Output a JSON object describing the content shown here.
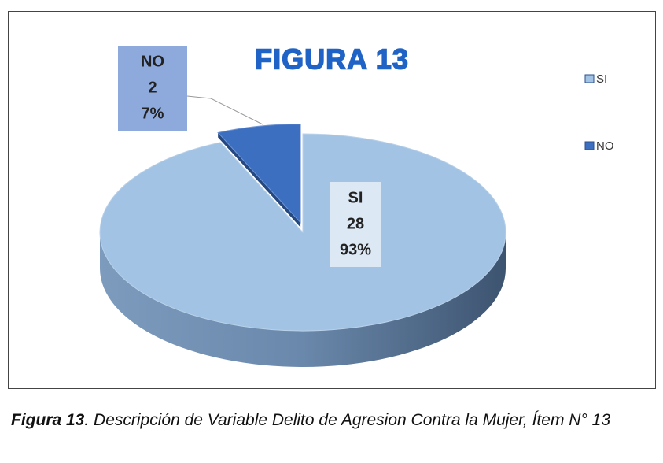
{
  "chart_data": {
    "type": "pie",
    "title": "FIGURA 13",
    "categories": [
      "SI",
      "NO"
    ],
    "values": [
      28,
      2
    ],
    "percent_labels": [
      "93%",
      "7%"
    ],
    "colors": [
      "#a3c3e4",
      "#3d6fc1"
    ],
    "legend": "right",
    "caption_label": "Figura 13",
    "caption_text": ". Descripción de Variable Delito de Agresion Contra la Mujer, Ítem N° 13"
  }
}
